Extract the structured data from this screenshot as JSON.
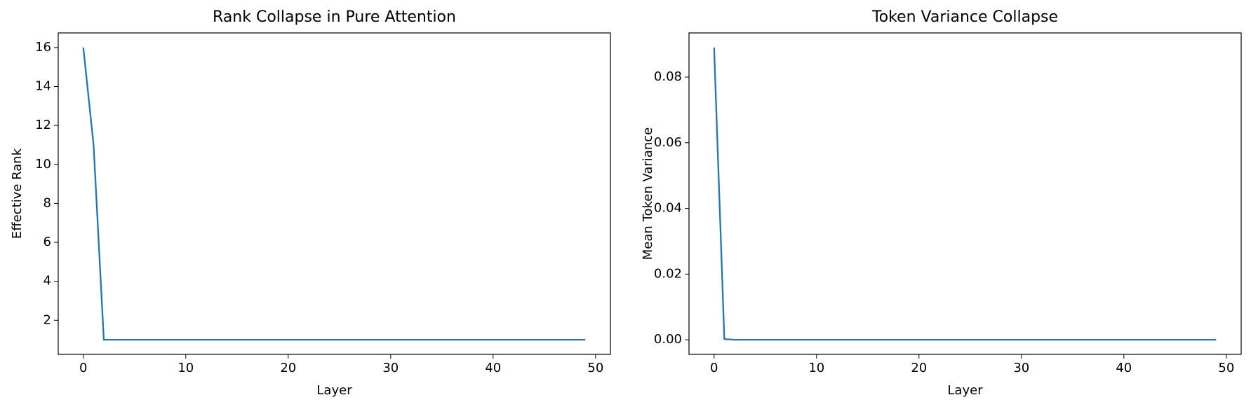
{
  "chart_data": [
    {
      "type": "line",
      "title": "Rank Collapse in Pure Attention",
      "xlabel": "Layer",
      "ylabel": "Effective Rank",
      "x": [
        0,
        1,
        2,
        3,
        4,
        5,
        6,
        7,
        8,
        9,
        10,
        11,
        12,
        13,
        14,
        15,
        16,
        17,
        18,
        19,
        20,
        21,
        22,
        23,
        24,
        25,
        26,
        27,
        28,
        29,
        30,
        31,
        32,
        33,
        34,
        35,
        36,
        37,
        38,
        39,
        40,
        41,
        42,
        43,
        44,
        45,
        46,
        47,
        48,
        49
      ],
      "series": [
        {
          "color": "#1f77b4",
          "values": [
            16,
            11,
            1,
            1,
            1,
            1,
            1,
            1,
            1,
            1,
            1,
            1,
            1,
            1,
            1,
            1,
            1,
            1,
            1,
            1,
            1,
            1,
            1,
            1,
            1,
            1,
            1,
            1,
            1,
            1,
            1,
            1,
            1,
            1,
            1,
            1,
            1,
            1,
            1,
            1,
            1,
            1,
            1,
            1,
            1,
            1,
            1,
            1,
            1,
            1
          ]
        }
      ],
      "xlim": [
        -2.45,
        51.45
      ],
      "xticks": [
        0,
        10,
        20,
        30,
        40,
        50
      ],
      "ylim": [
        0.25,
        16.75
      ],
      "yticks": [
        2,
        4,
        6,
        8,
        10,
        12,
        14,
        16
      ]
    },
    {
      "type": "line",
      "title": "Token Variance Collapse",
      "xlabel": "Layer",
      "ylabel": "Mean Token Variance",
      "x": [
        0,
        1,
        2,
        3,
        4,
        5,
        6,
        7,
        8,
        9,
        10,
        11,
        12,
        13,
        14,
        15,
        16,
        17,
        18,
        19,
        20,
        21,
        22,
        23,
        24,
        25,
        26,
        27,
        28,
        29,
        30,
        31,
        32,
        33,
        34,
        35,
        36,
        37,
        38,
        39,
        40,
        41,
        42,
        43,
        44,
        45,
        46,
        47,
        48,
        49
      ],
      "series": [
        {
          "color": "#1f77b4",
          "values": [
            0.089,
            0.0002,
            0,
            0,
            0,
            0,
            0,
            0,
            0,
            0,
            0,
            0,
            0,
            0,
            0,
            0,
            0,
            0,
            0,
            0,
            0,
            0,
            0,
            0,
            0,
            0,
            0,
            0,
            0,
            0,
            0,
            0,
            0,
            0,
            0,
            0,
            0,
            0,
            0,
            0,
            0,
            0,
            0,
            0,
            0,
            0,
            0,
            0,
            0,
            0
          ]
        }
      ],
      "xlim": [
        -2.45,
        51.45
      ],
      "xticks": [
        0,
        10,
        20,
        30,
        40,
        50
      ],
      "ylim": [
        -0.00445,
        0.09345
      ],
      "yticks": [
        {
          "value": 0,
          "label": "0.00"
        },
        {
          "value": 0.02,
          "label": "0.02"
        },
        {
          "value": 0.04,
          "label": "0.04"
        },
        {
          "value": 0.06,
          "label": "0.06"
        },
        {
          "value": 0.08,
          "label": "0.08"
        }
      ]
    }
  ]
}
